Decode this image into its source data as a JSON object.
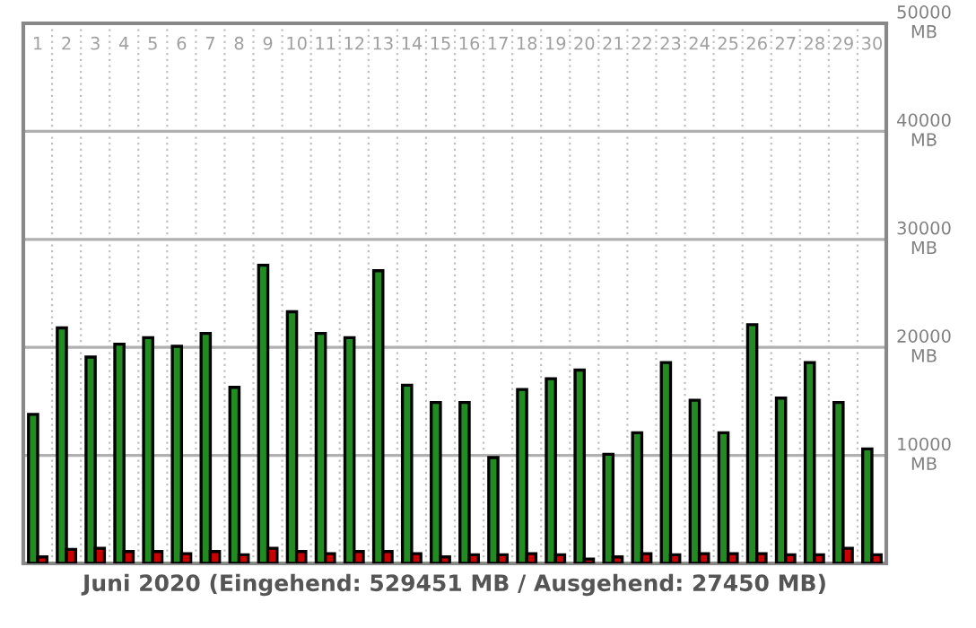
{
  "chart_data": {
    "type": "bar",
    "title": "Juni 2020 (Eingehend: 529451 MB / Ausgehend: 27450 MB)",
    "categories": [
      "1",
      "2",
      "3",
      "4",
      "5",
      "6",
      "7",
      "8",
      "9",
      "10",
      "11",
      "12",
      "13",
      "14",
      "15",
      "16",
      "17",
      "18",
      "19",
      "20",
      "21",
      "22",
      "23",
      "24",
      "25",
      "26",
      "27",
      "28",
      "29",
      "30"
    ],
    "series": [
      {
        "color": "#228b22",
        "values": [
          13800,
          21800,
          19100,
          20300,
          20900,
          20100,
          21300,
          16300,
          27600,
          23300,
          21300,
          20900,
          27100,
          16500,
          14900,
          14900,
          9800,
          16100,
          17100,
          17900,
          10100,
          12100,
          18600,
          15100,
          12100,
          22100,
          15300,
          18600,
          14900,
          10600
        ]
      },
      {
        "color": "#cc0000",
        "values": [
          600,
          1300,
          1400,
          1100,
          1100,
          900,
          1100,
          800,
          1400,
          1100,
          900,
          1100,
          1100,
          900,
          600,
          800,
          800,
          900,
          800,
          400,
          600,
          900,
          800,
          900,
          900,
          900,
          800,
          800,
          1400,
          800
        ]
      }
    ],
    "ylim": [
      0,
      50000
    ],
    "yticks": [
      {
        "value": 0,
        "label": null
      },
      {
        "value": 10000,
        "label": "10000\nMB"
      },
      {
        "value": 20000,
        "label": "20000\nMB"
      },
      {
        "value": 30000,
        "label": "30000\nMB"
      },
      {
        "value": 40000,
        "label": "40000\nMB"
      },
      {
        "value": 50000,
        "label": "50000\nMB"
      }
    ],
    "grid": true
  }
}
